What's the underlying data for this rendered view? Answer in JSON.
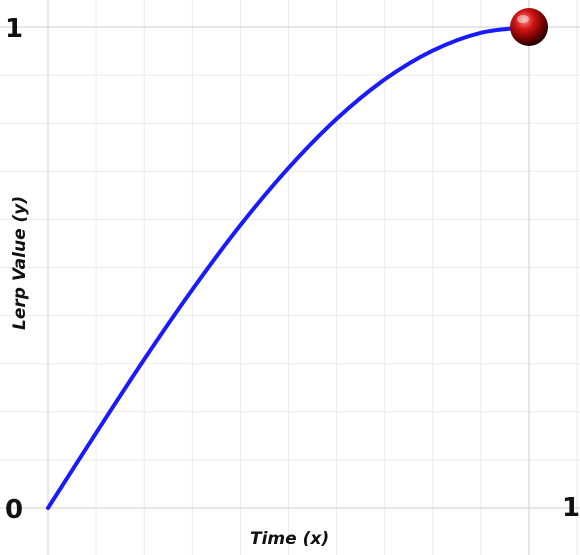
{
  "chart_data": {
    "type": "line",
    "title": "",
    "xlabel": "Time (x)",
    "ylabel": "Lerp Value (y)",
    "xlim": [
      0,
      1
    ],
    "ylim": [
      0,
      1
    ],
    "grid": true,
    "x_ticks": [
      {
        "value": 0,
        "label": "0"
      },
      {
        "value": 1,
        "label": "1"
      }
    ],
    "y_ticks": [
      {
        "value": 1,
        "label": "1"
      }
    ],
    "series": [
      {
        "color": "#1a1aff",
        "x": [
          0,
          0.1,
          0.2,
          0.3,
          0.4,
          0.5,
          0.6,
          0.7,
          0.8,
          0.9,
          1.0
        ],
        "y": [
          0,
          0.156,
          0.309,
          0.454,
          0.588,
          0.707,
          0.809,
          0.891,
          0.951,
          0.988,
          1.0
        ]
      }
    ],
    "marker": {
      "x": 1,
      "y": 1,
      "color": "#cc1111"
    }
  }
}
